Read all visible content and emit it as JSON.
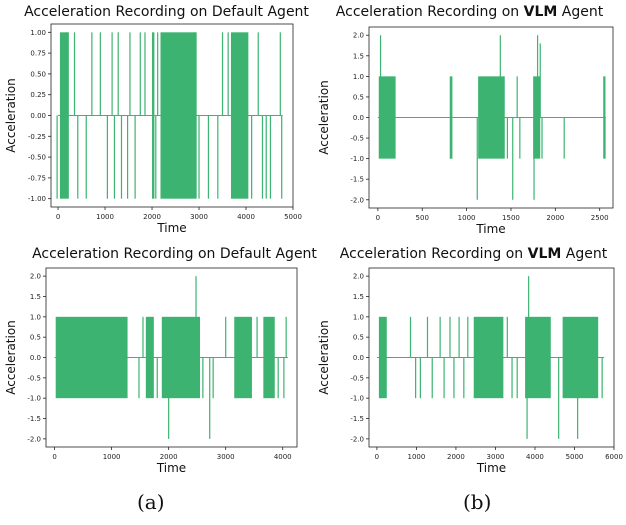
{
  "captions": [
    "(a)",
    "(b)"
  ],
  "chart_data": [
    {
      "type": "line",
      "title_parts": [
        "Acceleration Recording on ",
        "Default",
        " Agent"
      ],
      "title_bold": [
        false,
        false,
        false
      ],
      "xlabel": "Time",
      "ylabel": "Acceleration",
      "xlim": [
        -150,
        5000
      ],
      "ylim": [
        -1.1,
        1.1
      ],
      "xticks": [
        0,
        1000,
        2000,
        3000,
        4000,
        5000
      ],
      "yticks": [
        -1.0,
        -0.75,
        -0.5,
        -0.25,
        0.0,
        0.25,
        0.5,
        0.75,
        1.0
      ],
      "ytick_labels": [
        "-1.00",
        "-0.75",
        "-0.50",
        "-0.25",
        "0.00",
        "0.25",
        "0.50",
        "0.75",
        "1.00"
      ],
      "grid": false,
      "color": "#3cb371",
      "series": [
        {
          "x_end": 4780,
          "bands": [
            [
              40,
              230,
              1,
              -1
            ],
            [
              2000,
              2050,
              1,
              -1
            ],
            [
              2180,
              2950,
              1,
              -1
            ],
            [
              3680,
              4050,
              1,
              -1
            ]
          ],
          "spikes": [
            [
              -20,
              -1
            ],
            [
              170,
              1
            ],
            [
              350,
              1
            ],
            [
              420,
              -1
            ],
            [
              600,
              -1
            ],
            [
              720,
              1
            ],
            [
              900,
              1
            ],
            [
              1050,
              -1
            ],
            [
              1150,
              1
            ],
            [
              1200,
              -1
            ],
            [
              1280,
              1
            ],
            [
              1350,
              -1
            ],
            [
              1480,
              -1
            ],
            [
              1530,
              1
            ],
            [
              1640,
              -1
            ],
            [
              1750,
              1
            ],
            [
              1850,
              1
            ],
            [
              2080,
              -1
            ],
            [
              2120,
              1
            ],
            [
              2900,
              1
            ],
            [
              3000,
              -1
            ],
            [
              3200,
              -1
            ],
            [
              3400,
              -1
            ],
            [
              3500,
              1
            ],
            [
              3620,
              1
            ],
            [
              4120,
              -1
            ],
            [
              4260,
              1
            ],
            [
              4350,
              -1
            ],
            [
              4430,
              -1
            ],
            [
              4520,
              -1
            ],
            [
              4730,
              1
            ],
            [
              4760,
              -1
            ]
          ]
        }
      ]
    },
    {
      "type": "line",
      "title_parts": [
        "Acceleration Recording on ",
        "VLM",
        " Agent"
      ],
      "title_bold": [
        false,
        true,
        false
      ],
      "xlabel": "Time",
      "ylabel": "Acceleration",
      "xlim": [
        -100,
        2650
      ],
      "ylim": [
        -2.2,
        2.2
      ],
      "xticks": [
        0,
        500,
        1000,
        1500,
        2000,
        2500
      ],
      "yticks": [
        -2.0,
        -1.5,
        -1.0,
        -0.5,
        0.0,
        0.5,
        1.0,
        1.5,
        2.0
      ],
      "ytick_labels": [
        "-2.0",
        "-1.5",
        "-1.0",
        "-0.5",
        "0.0",
        "0.5",
        "1.0",
        "1.5",
        "2.0"
      ],
      "grid": false,
      "color": "#3cb371",
      "series": [
        {
          "x_end": 2570,
          "bands": [
            [
              10,
              200,
              1,
              -1
            ],
            [
              810,
              840,
              1,
              -1
            ],
            [
              1130,
              1430,
              1,
              -1
            ],
            [
              1750,
              1830,
              1,
              -1
            ],
            [
              2540,
              2565,
              1,
              -1
            ]
          ],
          "spikes": [
            [
              30,
              2
            ],
            [
              820,
              -1
            ],
            [
              1120,
              -2
            ],
            [
              1380,
              2
            ],
            [
              1460,
              -1
            ],
            [
              1520,
              -2
            ],
            [
              1570,
              1
            ],
            [
              1600,
              -1
            ],
            [
              1760,
              -2
            ],
            [
              1800,
              2
            ],
            [
              1830,
              1.8
            ],
            [
              1850,
              -1
            ],
            [
              2100,
              -1
            ],
            [
              2560,
              -1
            ]
          ]
        }
      ]
    },
    {
      "type": "line",
      "title_parts": [
        "Acceleration Recording on ",
        "Default",
        " Agent"
      ],
      "title_bold": [
        false,
        false,
        false
      ],
      "xlabel": "Time",
      "ylabel": "Acceleration",
      "xlim": [
        -150,
        4250
      ],
      "ylim": [
        -2.2,
        2.2
      ],
      "xticks": [
        0,
        1000,
        2000,
        3000,
        4000
      ],
      "yticks": [
        -2.0,
        -1.5,
        -1.0,
        -0.5,
        0.0,
        0.5,
        1.0,
        1.5,
        2.0
      ],
      "ytick_labels": [
        "-2.0",
        "-1.5",
        "-1.0",
        "-0.5",
        "0.0",
        "0.5",
        "1.0",
        "1.5",
        "2.0"
      ],
      "grid": false,
      "color": "#3cb371",
      "series": [
        {
          "x_end": 4090,
          "bands": [
            [
              20,
              1280,
              1,
              -1
            ],
            [
              1600,
              1740,
              1,
              -1
            ],
            [
              1880,
              2550,
              1,
              -1
            ],
            [
              3150,
              3460,
              1,
              -1
            ],
            [
              3660,
              3860,
              1,
              -1
            ]
          ],
          "spikes": [
            [
              1480,
              -1
            ],
            [
              1550,
              1
            ],
            [
              1800,
              -1
            ],
            [
              2000,
              -2
            ],
            [
              2480,
              2
            ],
            [
              2600,
              -1
            ],
            [
              2720,
              -2
            ],
            [
              2780,
              -1
            ],
            [
              3000,
              1
            ],
            [
              3550,
              1
            ],
            [
              3920,
              -1
            ],
            [
              4020,
              -1
            ],
            [
              4060,
              1
            ]
          ]
        }
      ]
    },
    {
      "type": "line",
      "title_parts": [
        "Acceleration Recording on ",
        "VLM",
        " Agent"
      ],
      "title_bold": [
        false,
        true,
        false
      ],
      "xlabel": "Time",
      "ylabel": "Acceleration",
      "xlim": [
        -200,
        6000
      ],
      "ylim": [
        -2.2,
        2.2
      ],
      "xticks": [
        0,
        1000,
        2000,
        3000,
        4000,
        5000,
        6000
      ],
      "yticks": [
        -2.0,
        -1.5,
        -1.0,
        -0.5,
        0.0,
        0.5,
        1.0,
        1.5,
        2.0
      ],
      "ytick_labels": [
        "-2.0",
        "-1.5",
        "-1.0",
        "-0.5",
        "0.0",
        "0.5",
        "1.0",
        "1.5",
        "2.0"
      ],
      "grid": false,
      "color": "#3cb371",
      "series": [
        {
          "x_end": 5750,
          "bands": [
            [
              50,
              250,
              1,
              -1
            ],
            [
              2450,
              3200,
              1,
              -1
            ],
            [
              3750,
              4400,
              1,
              -1
            ],
            [
              4700,
              5600,
              1,
              -1
            ]
          ],
          "spikes": [
            [
              100,
              -1
            ],
            [
              850,
              1
            ],
            [
              980,
              -1
            ],
            [
              1100,
              -1
            ],
            [
              1280,
              1
            ],
            [
              1400,
              -1
            ],
            [
              1600,
              1
            ],
            [
              1700,
              -1
            ],
            [
              1850,
              1
            ],
            [
              1950,
              -1
            ],
            [
              2080,
              1
            ],
            [
              2200,
              -1
            ],
            [
              2300,
              1
            ],
            [
              3300,
              1
            ],
            [
              3420,
              -1
            ],
            [
              3550,
              -1
            ],
            [
              3800,
              -2
            ],
            [
              3840,
              2
            ],
            [
              4600,
              -2
            ],
            [
              5080,
              -2
            ],
            [
              5700,
              -1
            ]
          ]
        }
      ]
    }
  ]
}
